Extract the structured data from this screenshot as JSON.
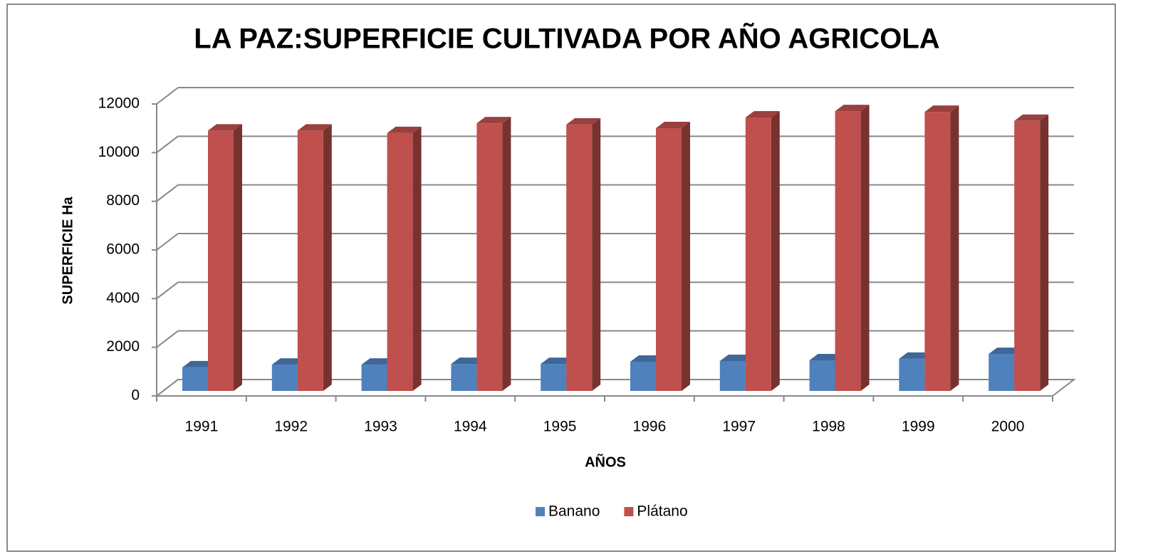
{
  "chart_data": {
    "type": "bar3d",
    "title": "LA PAZ:SUPERFICIE CULTIVADA POR AÑO AGRICOLA",
    "x_label": "AÑOS",
    "y_label": "SUPERFICIE Ha",
    "categories": [
      "1991",
      "1992",
      "1993",
      "1994",
      "1995",
      "1996",
      "1997",
      "1998",
      "1999",
      "2000"
    ],
    "series": [
      {
        "name": "Banano",
        "color": "#4f81bd",
        "values": [
          970,
          1080,
          1080,
          1110,
          1110,
          1200,
          1230,
          1260,
          1320,
          1520
        ]
      },
      {
        "name": "Plátano",
        "color": "#c0504d",
        "values": [
          10700,
          10700,
          10600,
          11000,
          10950,
          10800,
          11240,
          11500,
          11470,
          11100
        ]
      }
    ],
    "ylim": [
      0,
      12000
    ],
    "yticks": [
      0,
      2000,
      4000,
      6000,
      8000,
      10000,
      12000
    ],
    "grid": true,
    "legend": "bottom"
  }
}
